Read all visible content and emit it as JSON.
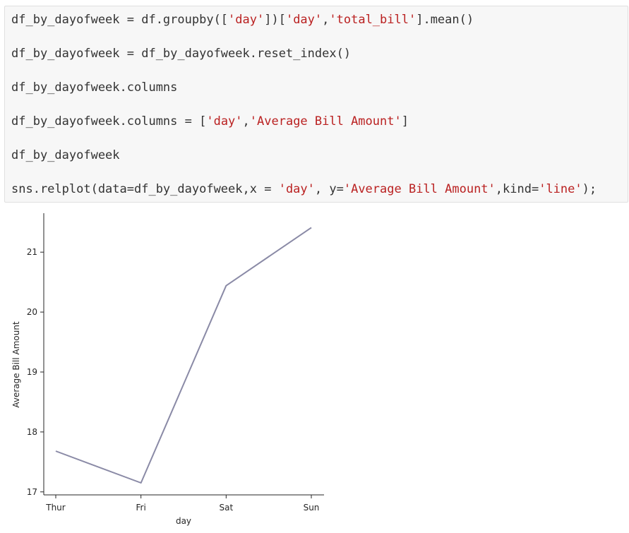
{
  "code_cell": {
    "lines": [
      [
        {
          "t": "df_by_dayofweek = df.groupby([",
          "k": "txt"
        },
        {
          "t": "'day'",
          "k": "str"
        },
        {
          "t": "])[",
          "k": "txt"
        },
        {
          "t": "'day'",
          "k": "str"
        },
        {
          "t": ",",
          "k": "txt"
        },
        {
          "t": "'total_bill'",
          "k": "str"
        },
        {
          "t": "].mean()",
          "k": "txt"
        }
      ],
      [
        {
          "t": "df_by_dayofweek = df_by_dayofweek.reset_index()",
          "k": "txt"
        }
      ],
      [
        {
          "t": "df_by_dayofweek.columns",
          "k": "txt"
        }
      ],
      [
        {
          "t": "df_by_dayofweek.columns = [",
          "k": "txt"
        },
        {
          "t": "'day'",
          "k": "str"
        },
        {
          "t": ",",
          "k": "txt"
        },
        {
          "t": "'Average Bill Amount'",
          "k": "str"
        },
        {
          "t": "]",
          "k": "txt"
        }
      ],
      [
        {
          "t": "df_by_dayofweek",
          "k": "txt"
        }
      ],
      [
        {
          "t": "sns.relplot(data=df_by_dayofweek,x = ",
          "k": "txt"
        },
        {
          "t": "'day'",
          "k": "str"
        },
        {
          "t": ", y=",
          "k": "txt"
        },
        {
          "t": "'Average Bill Amount'",
          "k": "str"
        },
        {
          "t": ",kind=",
          "k": "txt"
        },
        {
          "t": "'line'",
          "k": "str"
        },
        {
          "t": ");",
          "k": "txt"
        }
      ]
    ]
  },
  "colors": {
    "string": "#ba2121",
    "text": "#333333",
    "line": "#8a8aa6",
    "axis": "#262626"
  },
  "chart_data": {
    "type": "line",
    "categories": [
      "Thur",
      "Fri",
      "Sat",
      "Sun"
    ],
    "series": [
      {
        "values": [
          17.68,
          17.15,
          20.44,
          21.41
        ]
      }
    ],
    "xlabel": "day",
    "ylabel": "Average Bill Amount",
    "yticks": [
      17,
      18,
      19,
      20,
      21
    ],
    "ylim": [
      16.95,
      21.65
    ],
    "grid": false
  }
}
